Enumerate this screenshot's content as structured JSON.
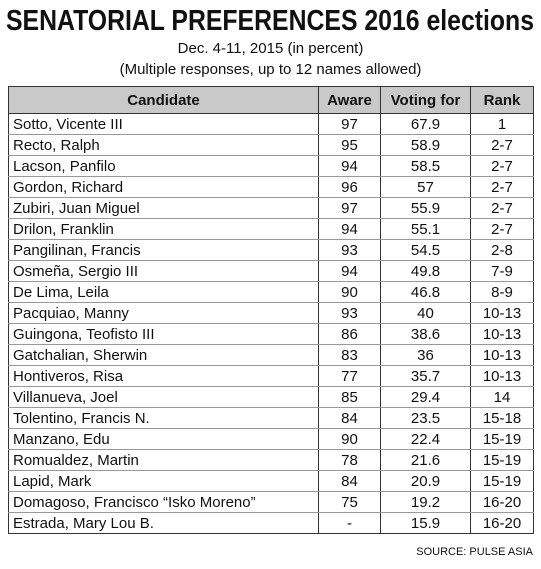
{
  "header": {
    "title": "SENATORIAL PREFERENCES 2016 elections",
    "subtitle": "Dec. 4-11, 2015 (in percent)",
    "note": "(Multiple responses, up to 12 names allowed)"
  },
  "table": {
    "columns": [
      "Candidate",
      "Aware",
      "Voting for",
      "Rank"
    ],
    "rows": [
      [
        "Sotto, Vicente III",
        97,
        67.9,
        1
      ],
      [
        "Recto, Ralph",
        95,
        58.9,
        "2-7"
      ],
      [
        "Lacson, Panfilo",
        94,
        58.5,
        "2-7"
      ],
      [
        "Gordon, Richard",
        96,
        57,
        "2-7"
      ],
      [
        "Zubiri, Juan Miguel",
        97,
        55.9,
        "2-7"
      ],
      [
        "Drilon, Franklin",
        94,
        55.1,
        "2-7"
      ],
      [
        "Pangilinan, Francis",
        93,
        54.5,
        "2-8"
      ],
      [
        "Osmeña, Sergio III",
        94,
        49.8,
        "7-9"
      ],
      [
        "De Lima, Leila",
        90,
        46.8,
        "8-9"
      ],
      [
        "Pacquiao, Manny",
        93,
        40,
        "10-13"
      ],
      [
        "Guingona, Teofisto III",
        86,
        38.6,
        "10-13"
      ],
      [
        "Gatchalian, Sherwin",
        83,
        36,
        "10-13"
      ],
      [
        "Hontiveros, Risa",
        77,
        35.7,
        "10-13"
      ],
      [
        "Villanueva, Joel",
        85,
        29.4,
        14
      ],
      [
        "Tolentino, Francis N.",
        84,
        23.5,
        "15-18"
      ],
      [
        "Manzano, Edu",
        90,
        22.4,
        "15-19"
      ],
      [
        "Romualdez, Martin",
        78,
        21.6,
        "15-19"
      ],
      [
        "Lapid, Mark",
        84,
        20.9,
        "15-19"
      ],
      [
        "Domagoso, Francisco “Isko Moreno”",
        75,
        19.2,
        "16-20"
      ],
      [
        "Estrada, Mary Lou B.",
        "-",
        15.9,
        "16-20"
      ]
    ]
  },
  "footer": {
    "source": "SOURCE: PULSE ASIA"
  }
}
